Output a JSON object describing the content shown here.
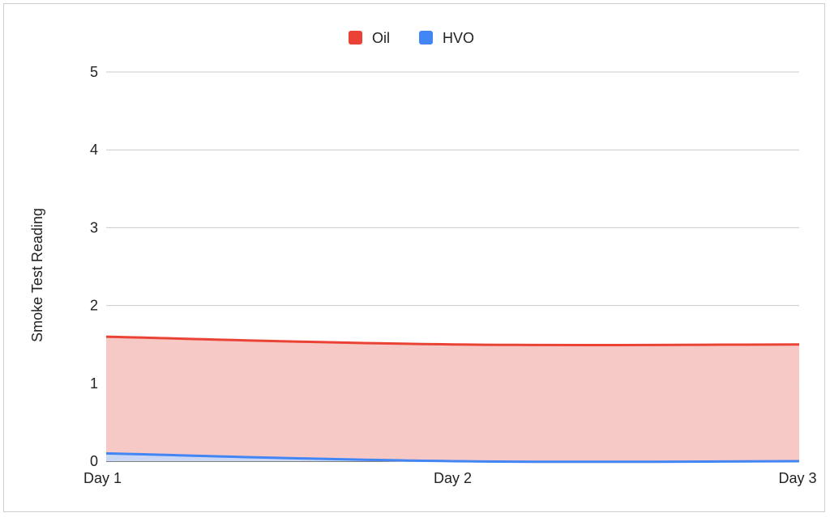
{
  "chart_data": {
    "type": "area",
    "title": "",
    "xlabel": "",
    "ylabel": "Smoke Test Reading",
    "categories": [
      "Day 1",
      "Day 2",
      "Day 3"
    ],
    "ylim": [
      0,
      5
    ],
    "yticks": [
      "0",
      "1",
      "2",
      "3",
      "4",
      "5"
    ],
    "grid": true,
    "legend": "top-center",
    "series": [
      {
        "name": "Oil",
        "color": "#ea4335",
        "fill": "#f5c6c3",
        "values": [
          1.6,
          1.5,
          1.5
        ]
      },
      {
        "name": "HVO",
        "color": "#4285f4",
        "fill": "#c6d8f7",
        "values": [
          0.1,
          0.0,
          0.0
        ]
      }
    ]
  }
}
